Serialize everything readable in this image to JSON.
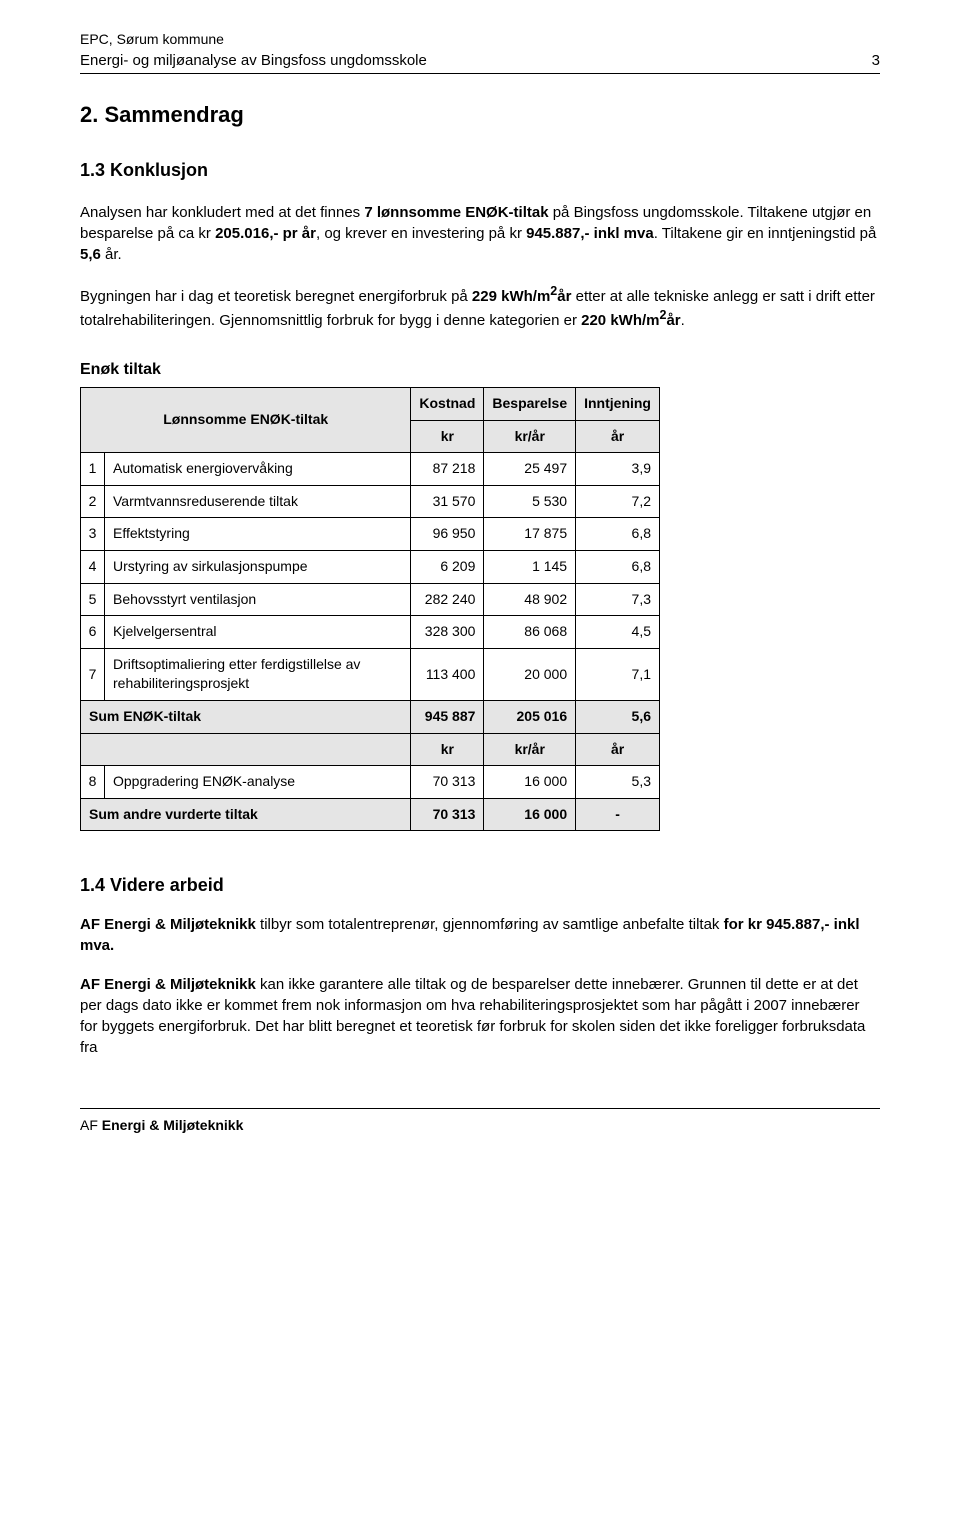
{
  "header": {
    "line1": "EPC, Sørum kommune",
    "line2": "Energi- og miljøanalyse av Bingsfoss ungdomsskole",
    "page_number": "3"
  },
  "title_h1": "2. Sammendrag",
  "title_h2": "1.3  Konklusjon",
  "para1_pre": "Analysen har konkludert med at det finnes ",
  "para1_bold": "7 lønnsomme ENØK-tiltak",
  "para1_post1": " på Bingsfoss ungdomsskole.  Tiltakene utgjør en besparelse på ca kr ",
  "para1_bold2": "205.016",
  "para1_post2": ",- pr år",
  "para1_post3": ", og krever en investering på kr ",
  "para1_bold3": "945.887,- inkl mva",
  "para1_post4": ". Tiltakene gir en inntjeningstid på ",
  "para1_bold4": "5,6",
  "para1_post5": " år.",
  "para2_pre": "Bygningen har i dag et teoretisk beregnet energiforbruk på ",
  "para2_bold1": "229 kWh/m",
  "para2_sup1": "2",
  "para2_bold1b": "år",
  "para2_mid": " etter at alle tekniske anlegg er satt i drift etter totalrehabiliteringen. Gjennomsnittlig forbruk for bygg i denne kategorien er ",
  "para2_bold2": "220 kWh/m",
  "para2_sup2": "2",
  "para2_bold2b": "år",
  "para2_end": ".",
  "table": {
    "title": "Enøk tiltak",
    "head_label": "Lønnsomme ENØK-tiltak",
    "head_kostnad": "Kostnad",
    "head_besparelse": "Besparelse",
    "head_inntjening": "Inntjening",
    "unit_kr": "kr",
    "unit_kr_ar": "kr/år",
    "unit_ar": "år",
    "rows": [
      {
        "idx": "1",
        "label": "Automatisk energiovervåking",
        "kostnad": "87 218",
        "besparelse": "25 497",
        "inntjening": "3,9"
      },
      {
        "idx": "2",
        "label": "Varmtvannsreduserende tiltak",
        "kostnad": "31 570",
        "besparelse": "5 530",
        "inntjening": "7,2"
      },
      {
        "idx": "3",
        "label": "Effektstyring",
        "kostnad": "96 950",
        "besparelse": "17 875",
        "inntjening": "6,8"
      },
      {
        "idx": "4",
        "label": "Urstyring av sirkulasjonspumpe",
        "kostnad": "6 209",
        "besparelse": "1 145",
        "inntjening": "6,8"
      },
      {
        "idx": "5",
        "label": "Behovsstyrt ventilasjon",
        "kostnad": "282 240",
        "besparelse": "48 902",
        "inntjening": "7,3"
      },
      {
        "idx": "6",
        "label": "Kjelvelgersentral",
        "kostnad": "328 300",
        "besparelse": "86 068",
        "inntjening": "4,5"
      },
      {
        "idx": "7",
        "label": "Driftsoptimaliering etter ferdigstillelse av rehabiliteringsprosjekt",
        "kostnad": "113 400",
        "besparelse": "20 000",
        "inntjening": "7,1"
      }
    ],
    "sum1_label": "Sum ENØK-tiltak",
    "sum1_kostnad": "945 887",
    "sum1_besparelse": "205 016",
    "sum1_inntjening": "5,6",
    "andre_rows": [
      {
        "idx": "8",
        "label": "Oppgradering ENØK-analyse",
        "kostnad": "70 313",
        "besparelse": "16 000",
        "inntjening": "5,3"
      }
    ],
    "sum2_label": "Sum andre vurderte tiltak",
    "sum2_kostnad": "70 313",
    "sum2_besparelse": "16 000",
    "sum2_inntjening": "-",
    "widths": {
      "idx": 24,
      "label": 270,
      "num": 92
    },
    "colors": {
      "header_bg": "#e5e5e5",
      "border": "#000000"
    }
  },
  "section2_title": "1.4  Videre arbeid",
  "para3_pre": "AF Energi & Miljøteknikk ",
  "para3_text": "tilbyr som totalentreprenør, gjennomføring av samtlige anbefalte tiltak",
  "para3_bold": " for kr 945.887,- inkl mva.",
  "para4_pre": "AF Energi & Miljøteknikk ",
  "para4_text": "kan ikke garantere alle tiltak og de besparelser dette innebærer. Grunnen til dette er at det per dags dato ikke er kommet frem nok informasjon om hva rehabiliteringsprosjektet som har pågått i 2007 innebærer for byggets energiforbruk. Det har blitt beregnet et teoretisk før forbruk for skolen siden det ikke foreligger forbruksdata fra",
  "footer_pre": "AF ",
  "footer_bold": "Energi & Miljøteknikk"
}
